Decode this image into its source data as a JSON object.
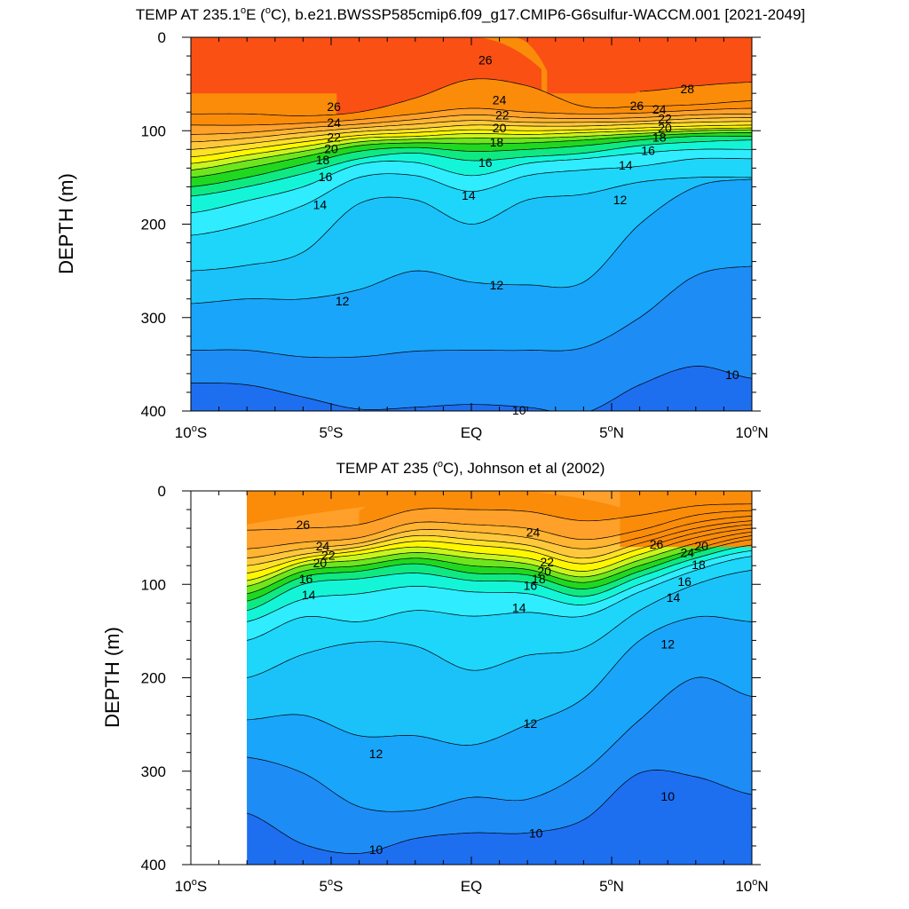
{
  "chart_data": [
    {
      "type": "contour",
      "title": "TEMP AT 235.1°E (°C), b.e21.BWSSP585cmip6.f09_g17.CMIP6-G6sulfur-WACCM.001 [2021-2049]",
      "title_parts": {
        "pre": "TEMP AT 235.1",
        "deg1": "o",
        "mid": "E (",
        "deg2": "o",
        "post": "C), b.e21.BWSSP585cmip6.f09_g17.CMIP6-G6sulfur-WACCM.001 [2021-2049]"
      },
      "ylabel": "DEPTH (m)",
      "xlim": [
        -10,
        10
      ],
      "ylim": [
        400,
        0
      ],
      "data_xlim": [
        -10,
        10
      ],
      "x_ticks": [
        {
          "value": -10,
          "label": "10",
          "deg": "o",
          "suffix": "S"
        },
        {
          "value": -5,
          "label": "5",
          "deg": "o",
          "suffix": "S"
        },
        {
          "value": 0,
          "label": "EQ",
          "deg": "",
          "suffix": ""
        },
        {
          "value": 5,
          "label": "5",
          "deg": "o",
          "suffix": "N"
        },
        {
          "value": 10,
          "label": "10",
          "deg": "o",
          "suffix": "N"
        }
      ],
      "y_ticks": [
        {
          "value": 0,
          "label": "0"
        },
        {
          "value": 100,
          "label": "100"
        },
        {
          "value": 200,
          "label": "200"
        },
        {
          "value": 300,
          "label": "300"
        },
        {
          "value": 400,
          "label": "400"
        }
      ],
      "anchors_x": [
        -10,
        -8,
        -6,
        -4,
        -2,
        0,
        2,
        4,
        6,
        8,
        10
      ],
      "isotherms": [
        {
          "level": 10,
          "depths": [
            370,
            372,
            385,
            398,
            396,
            393,
            396,
            402,
            372,
            352,
            365
          ]
        },
        {
          "level": 11,
          "depths": [
            335,
            335,
            342,
            342,
            336,
            335,
            335,
            332,
            300,
            255,
            245
          ]
        },
        {
          "level": 12,
          "depths": [
            285,
            280,
            280,
            270,
            250,
            262,
            265,
            262,
            200,
            160,
            152
          ]
        },
        {
          "level": 13,
          "depths": [
            250,
            244,
            230,
            178,
            174,
            200,
            174,
            168,
            155,
            150,
            150
          ]
        },
        {
          "level": 14,
          "depths": [
            212,
            200,
            180,
            150,
            148,
            165,
            148,
            142,
            138,
            130,
            130
          ]
        },
        {
          "level": 15,
          "depths": [
            188,
            175,
            160,
            136,
            134,
            148,
            135,
            130,
            124,
            120,
            120
          ]
        },
        {
          "level": 16,
          "depths": [
            170,
            160,
            146,
            130,
            124,
            132,
            128,
            124,
            116,
            112,
            110
          ]
        },
        {
          "level": 17,
          "depths": [
            160,
            150,
            136,
            122,
            118,
            122,
            120,
            116,
            110,
            106,
            106
          ]
        },
        {
          "level": 18,
          "depths": [
            150,
            140,
            128,
            116,
            113,
            114,
            113,
            110,
            106,
            103,
            102
          ]
        },
        {
          "level": 19,
          "depths": [
            142,
            132,
            122,
            112,
            109,
            108,
            108,
            106,
            103,
            100,
            99
          ]
        },
        {
          "level": 20,
          "depths": [
            135,
            126,
            117,
            108,
            106,
            103,
            104,
            102,
            100,
            98,
            97
          ]
        },
        {
          "level": 21,
          "depths": [
            128,
            120,
            112,
            105,
            102,
            99,
            100,
            99,
            97,
            95,
            94
          ]
        },
        {
          "level": 22,
          "depths": [
            120,
            114,
            107,
            101,
            98,
            94,
            95,
            95,
            93,
            91,
            90
          ]
        },
        {
          "level": 23,
          "depths": [
            112,
            108,
            102,
            97,
            93,
            89,
            91,
            91,
            90,
            87,
            86
          ]
        },
        {
          "level": 24,
          "depths": [
            104,
            102,
            97,
            93,
            88,
            83,
            86,
            87,
            86,
            83,
            82
          ]
        },
        {
          "level": 25,
          "depths": [
            94,
            94,
            92,
            88,
            82,
            76,
            80,
            82,
            81,
            78,
            76
          ]
        },
        {
          "level": 26,
          "depths": [
            82,
            82,
            84,
            80,
            65,
            45,
            52,
            74,
            74,
            72,
            68
          ]
        },
        {
          "level": 27,
          "depths": [
            null,
            null,
            null,
            null,
            null,
            null,
            null,
            null,
            58,
            52,
            48
          ]
        }
      ],
      "surface": [
        {
          "level": 26,
          "x": [
            -10,
            -4.8,
            -2,
            0,
            2.5,
            10
          ]
        },
        {
          "level": 27,
          "x": [
            -10,
            -3.5,
            -1.5,
            1.5,
            2.7,
            10
          ]
        }
      ],
      "contour_labels": [
        {
          "text": "26",
          "x": -4.9,
          "y": 75
        },
        {
          "text": "24",
          "x": -4.9,
          "y": 92
        },
        {
          "text": "22",
          "x": -4.9,
          "y": 108
        },
        {
          "text": "20",
          "x": -5.0,
          "y": 120
        },
        {
          "text": "18",
          "x": -5.3,
          "y": 132
        },
        {
          "text": "16",
          "x": -5.2,
          "y": 150
        },
        {
          "text": "14",
          "x": -5.4,
          "y": 180
        },
        {
          "text": "26",
          "x": 0.5,
          "y": 25
        },
        {
          "text": "24",
          "x": 1.0,
          "y": 68
        },
        {
          "text": "22",
          "x": 1.1,
          "y": 84
        },
        {
          "text": "20",
          "x": 1.0,
          "y": 98
        },
        {
          "text": "18",
          "x": 0.9,
          "y": 113
        },
        {
          "text": "16",
          "x": 0.5,
          "y": 135
        },
        {
          "text": "14",
          "x": -0.1,
          "y": 170
        },
        {
          "text": "12",
          "x": 0.9,
          "y": 266
        },
        {
          "text": "12",
          "x": -4.6,
          "y": 283
        },
        {
          "text": "10",
          "x": 1.7,
          "y": 400
        },
        {
          "text": "12",
          "x": 5.3,
          "y": 175
        },
        {
          "text": "14",
          "x": 5.5,
          "y": 138
        },
        {
          "text": "16",
          "x": 6.3,
          "y": 122
        },
        {
          "text": "18",
          "x": 6.7,
          "y": 108
        },
        {
          "text": "20",
          "x": 6.9,
          "y": 98
        },
        {
          "text": "22",
          "x": 6.9,
          "y": 88
        },
        {
          "text": "24",
          "x": 6.7,
          "y": 78
        },
        {
          "text": "26",
          "x": 5.9,
          "y": 74
        },
        {
          "text": "28",
          "x": 7.7,
          "y": 56
        },
        {
          "text": "10",
          "x": 9.3,
          "y": 362
        }
      ]
    },
    {
      "type": "contour",
      "title": "TEMP AT 235 (°C), Johnson et al (2002)",
      "title_parts": {
        "pre": "TEMP AT 235 (",
        "deg1": "o",
        "mid": "C), Johnson et al (2002)",
        "deg2": "",
        "post": ""
      },
      "ylabel": "DEPTH (m)",
      "xlim": [
        -10,
        10
      ],
      "ylim": [
        400,
        0
      ],
      "data_xlim": [
        -8,
        10
      ],
      "x_ticks": [
        {
          "value": -10,
          "label": "10",
          "deg": "o",
          "suffix": "S"
        },
        {
          "value": -5,
          "label": "5",
          "deg": "o",
          "suffix": "S"
        },
        {
          "value": 0,
          "label": "EQ",
          "deg": "",
          "suffix": ""
        },
        {
          "value": 5,
          "label": "5",
          "deg": "o",
          "suffix": "N"
        },
        {
          "value": 10,
          "label": "10",
          "deg": "o",
          "suffix": "N"
        }
      ],
      "y_ticks": [
        {
          "value": 0,
          "label": "0"
        },
        {
          "value": 100,
          "label": "100"
        },
        {
          "value": 200,
          "label": "200"
        },
        {
          "value": 300,
          "label": "300"
        },
        {
          "value": 400,
          "label": "400"
        }
      ],
      "anchors_x": [
        -8,
        -6,
        -4,
        -2,
        0,
        2,
        4,
        6,
        8,
        10
      ],
      "isotherms": [
        {
          "level": 10,
          "depths": [
            345,
            378,
            388,
            372,
            366,
            366,
            352,
            302,
            306,
            325
          ]
        },
        {
          "level": 11,
          "depths": [
            285,
            302,
            338,
            342,
            328,
            330,
            300,
            245,
            200,
            220
          ]
        },
        {
          "level": 12,
          "depths": [
            245,
            240,
            262,
            262,
            272,
            250,
            222,
            160,
            135,
            140
          ]
        },
        {
          "level": 13,
          "depths": [
            200,
            175,
            162,
            166,
            192,
            176,
            168,
            128,
            100,
            85
          ]
        },
        {
          "level": 14,
          "depths": [
            160,
            135,
            140,
            128,
            134,
            130,
            134,
            108,
            85,
            70
          ]
        },
        {
          "level": 15,
          "depths": [
            140,
            116,
            110,
            102,
            108,
            110,
            122,
            100,
            78,
            64
          ]
        },
        {
          "level": 16,
          "depths": [
            128,
            100,
            94,
            88,
            96,
            98,
            113,
            92,
            72,
            58
          ]
        },
        {
          "level": 17,
          "depths": [
            118,
            92,
            86,
            78,
            88,
            90,
            105,
            86,
            66,
            52
          ]
        },
        {
          "level": 18,
          "depths": [
            110,
            86,
            80,
            72,
            80,
            84,
            98,
            80,
            62,
            48
          ]
        },
        {
          "level": 19,
          "depths": [
            102,
            80,
            74,
            66,
            72,
            78,
            92,
            74,
            56,
            44
          ]
        },
        {
          "level": 20,
          "depths": [
            96,
            76,
            68,
            60,
            66,
            72,
            86,
            68,
            50,
            40
          ]
        },
        {
          "level": 21,
          "depths": [
            88,
            72,
            64,
            54,
            58,
            64,
            78,
            62,
            45,
            36
          ]
        },
        {
          "level": 22,
          "depths": [
            80,
            68,
            60,
            48,
            52,
            58,
            72,
            56,
            40,
            32
          ]
        },
        {
          "level": 23,
          "depths": [
            72,
            62,
            56,
            42,
            44,
            50,
            62,
            50,
            34,
            27
          ]
        },
        {
          "level": 24,
          "depths": [
            62,
            55,
            50,
            34,
            36,
            40,
            52,
            42,
            26,
            21
          ]
        },
        {
          "level": 25,
          "depths": [
            42,
            40,
            36,
            20,
            20,
            22,
            32,
            26,
            16,
            14
          ]
        }
      ],
      "surface": [
        {
          "level": 25,
          "x": [
            -8,
            -4,
            -2,
            1,
            5.3,
            10
          ]
        },
        {
          "level": 26,
          "x": [
            -8,
            -8,
            5.3,
            5.3,
            5.3,
            10
          ]
        }
      ],
      "contour_labels": [
        {
          "text": "26",
          "x": -6.0,
          "y": 37
        },
        {
          "text": "24",
          "x": -5.3,
          "y": 60
        },
        {
          "text": "22",
          "x": -5.1,
          "y": 70
        },
        {
          "text": "20",
          "x": -5.4,
          "y": 78
        },
        {
          "text": "16",
          "x": -5.9,
          "y": 95
        },
        {
          "text": "14",
          "x": -5.8,
          "y": 112
        },
        {
          "text": "24",
          "x": 2.2,
          "y": 45
        },
        {
          "text": "22",
          "x": 2.7,
          "y": 77
        },
        {
          "text": "20",
          "x": 2.6,
          "y": 87
        },
        {
          "text": "18",
          "x": 2.4,
          "y": 95
        },
        {
          "text": "16",
          "x": 2.1,
          "y": 102
        },
        {
          "text": "14",
          "x": 1.7,
          "y": 126
        },
        {
          "text": "12",
          "x": 2.1,
          "y": 250
        },
        {
          "text": "12",
          "x": -3.4,
          "y": 282
        },
        {
          "text": "10",
          "x": -3.4,
          "y": 385
        },
        {
          "text": "10",
          "x": 2.3,
          "y": 367
        },
        {
          "text": "10",
          "x": 7.0,
          "y": 328
        },
        {
          "text": "12",
          "x": 7.0,
          "y": 165
        },
        {
          "text": "14",
          "x": 7.2,
          "y": 115
        },
        {
          "text": "16",
          "x": 7.6,
          "y": 98
        },
        {
          "text": "26",
          "x": 6.6,
          "y": 58
        },
        {
          "text": "24",
          "x": 7.7,
          "y": 67
        },
        {
          "text": "20",
          "x": 8.2,
          "y": 60
        },
        {
          "text": "18",
          "x": 8.1,
          "y": 80
        }
      ]
    }
  ],
  "palette": {
    "9": "#1e6ef0",
    "10": "#1e8cf5",
    "11": "#19a5fa",
    "12": "#1bc2fa",
    "13": "#1ed6fa",
    "14": "#30ecff",
    "15": "#14f5d8",
    "16": "#10e882",
    "17": "#20d820",
    "18": "#6ee61e",
    "19": "#c8f51e",
    "20": "#fff700",
    "21": "#ffe128",
    "22": "#ffc83c",
    "23": "#ffb432",
    "24": "#ffa02a",
    "25": "#fa8c0a",
    "26": "#fa5014",
    "27": "#f61414",
    "28": "#d70000"
  }
}
